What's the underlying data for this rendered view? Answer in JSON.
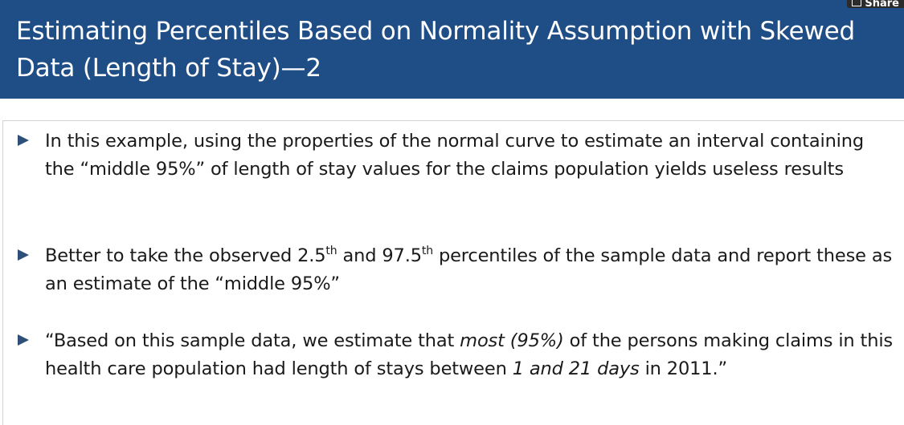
{
  "header": {
    "title": "Estimating Percentiles Based on Normality Assumption with Skewed Data (Length of Stay)—2",
    "background_color": "#1f4e86"
  },
  "toolbar": {
    "share_label": "Share",
    "share_icon": "share-icon"
  },
  "bullets": [
    {
      "text": "In this example, using the properties of the normal curve to estimate an interval containing the “middle 95%” of length of stay values for the claims population yields useless results"
    },
    {
      "part1": "Better to take the observed 2.5",
      "sup1": "th",
      "part2": " and 97.5",
      "sup2": "th",
      "part3": " percentiles of the sample data and report these as an estimate of the “middle 95%”"
    },
    {
      "part1": "“Based on this sample data, we estimate that ",
      "em1": "most (95%)",
      "part2": " of the persons making claims in this health care population had length of stays between ",
      "em2": "1 and 21 days",
      "part3": " in 2011.”"
    }
  ],
  "colors": {
    "bullet_marker": "#2e4f7a",
    "body_text": "#1a1a1a"
  }
}
